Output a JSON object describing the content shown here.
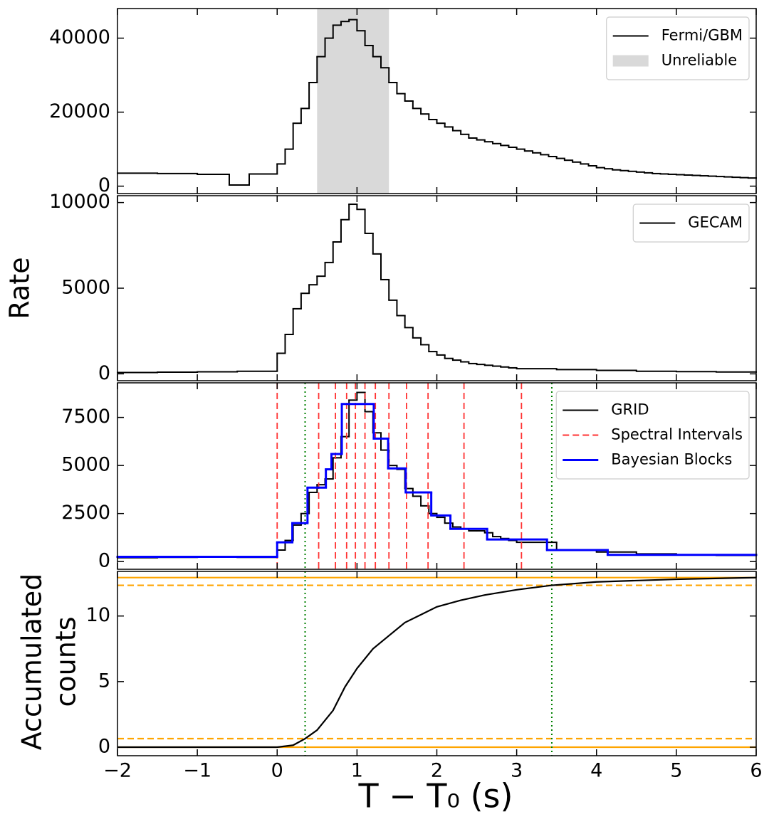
{
  "chart_data": [
    {
      "type": "histogram",
      "xlim": [
        -2,
        6
      ],
      "ylim": [
        -2000,
        48000
      ],
      "yticks": [
        0,
        20000,
        40000
      ],
      "legend": "upper right",
      "series": [
        {
          "name": "Fermi/GBM",
          "color": "#000000",
          "bins": [
            -2,
            -1.5,
            -1,
            -0.6,
            -0.35,
            0,
            0.1,
            0.2,
            0.3,
            0.4,
            0.5,
            0.6,
            0.7,
            0.8,
            0.9,
            1,
            1.1,
            1.2,
            1.3,
            1.4,
            1.5,
            1.6,
            1.7,
            1.8,
            1.9,
            2,
            2.1,
            2.2,
            2.3,
            2.4,
            2.5,
            2.6,
            2.7,
            2.8,
            2.9,
            3,
            3.1,
            3.2,
            3.3,
            3.4,
            3.5,
            3.6,
            3.7,
            3.8,
            3.9,
            4,
            4.1,
            4.2,
            4.3,
            4.4,
            4.5,
            4.6,
            4.7,
            4.8,
            4.9,
            5,
            5.1,
            5.2,
            5.3,
            5.4,
            5.5,
            5.6,
            5.7,
            5.8,
            5.9,
            6
          ],
          "values": [
            3500,
            3400,
            3200,
            300,
            3300,
            6000,
            10000,
            17000,
            21000,
            28000,
            35000,
            40000,
            43500,
            44500,
            45000,
            42000,
            38000,
            35000,
            32000,
            28000,
            25000,
            23000,
            21000,
            19500,
            18000,
            17000,
            16000,
            15000,
            14000,
            13000,
            12500,
            12000,
            11500,
            11000,
            10500,
            10000,
            9500,
            9000,
            8500,
            8000,
            7500,
            7000,
            6500,
            6000,
            5500,
            5000,
            4700,
            4400,
            4200,
            4000,
            3800,
            3600,
            3400,
            3300,
            3200,
            3100,
            3000,
            2900,
            2800,
            2700,
            2600,
            2500,
            2400,
            2300,
            2200
          ]
        },
        {
          "name": "Unreliable",
          "color": "#d9d9d9",
          "span": [
            0.5,
            1.4
          ]
        }
      ]
    },
    {
      "type": "histogram",
      "xlim": [
        -2,
        6
      ],
      "ylim": [
        -400,
        10400
      ],
      "yticks": [
        0,
        5000,
        10000
      ],
      "legend": "upper right",
      "y_label": "Rate",
      "series": [
        {
          "name": "GECAM",
          "color": "#000000",
          "bins": [
            -2,
            -1.5,
            -1,
            -0.5,
            0,
            0.1,
            0.2,
            0.3,
            0.4,
            0.5,
            0.6,
            0.7,
            0.8,
            0.9,
            1,
            1.1,
            1.2,
            1.3,
            1.4,
            1.5,
            1.6,
            1.7,
            1.8,
            1.9,
            2,
            2.1,
            2.2,
            2.3,
            2.4,
            2.5,
            2.6,
            2.7,
            2.8,
            2.9,
            3,
            3.5,
            4,
            4.5,
            5,
            5.5,
            6
          ],
          "values": [
            80,
            100,
            120,
            150,
            1200,
            2300,
            3800,
            4700,
            5200,
            5700,
            6500,
            7700,
            9000,
            9900,
            9600,
            8200,
            7000,
            5500,
            4300,
            3400,
            2700,
            2100,
            1700,
            1300,
            1100,
            900,
            800,
            700,
            600,
            550,
            500,
            450,
            400,
            350,
            300,
            250,
            200,
            150,
            130,
            110
          ]
        }
      ]
    },
    {
      "type": "histogram",
      "xlim": [
        -2,
        6
      ],
      "ylim": [
        -400,
        9300
      ],
      "yticks": [
        0,
        2500,
        5000,
        7500
      ],
      "legend": "upper right",
      "series": [
        {
          "name": "GRID",
          "color": "#000000",
          "bins": [
            -2,
            -1.5,
            -1,
            -0.5,
            0,
            0.1,
            0.2,
            0.3,
            0.4,
            0.5,
            0.6,
            0.7,
            0.8,
            0.9,
            1,
            1.1,
            1.2,
            1.3,
            1.4,
            1.5,
            1.6,
            1.7,
            1.8,
            1.9,
            2,
            2.1,
            2.2,
            2.3,
            2.4,
            2.5,
            2.6,
            2.7,
            2.8,
            2.9,
            3,
            3.5,
            4,
            4.5,
            5,
            5.5,
            6
          ],
          "values": [
            200,
            220,
            230,
            220,
            600,
            1100,
            1900,
            2500,
            3600,
            4000,
            4300,
            5400,
            6500,
            8400,
            8800,
            7800,
            6700,
            5800,
            5000,
            4800,
            3800,
            3400,
            2900,
            2500,
            2300,
            2000,
            1800,
            1700,
            1600,
            1600,
            1500,
            1300,
            1200,
            1100,
            1000,
            600,
            500,
            400,
            350,
            320
          ]
        },
        {
          "name": "Spectral Intervals",
          "color": "#ff3333",
          "style": "dashed",
          "x": [
            0,
            0.52,
            0.73,
            0.87,
            0.98,
            1.1,
            1.23,
            1.4,
            1.62,
            1.89,
            2.34,
            3.06
          ]
        },
        {
          "name": "Bayesian Blocks",
          "color": "#0000ff",
          "bins": [
            -2,
            0,
            0.19,
            0.38,
            0.61,
            0.68,
            0.81,
            1.21,
            1.39,
            1.61,
            1.93,
            2.17,
            2.63,
            3.38,
            4.14,
            6
          ],
          "values": [
            250,
            1000,
            2000,
            3850,
            4800,
            5600,
            8200,
            6400,
            4850,
            3600,
            2400,
            1700,
            1150,
            600,
            350
          ]
        }
      ],
      "markers": {
        "color": "#008000",
        "style": "dotted",
        "x": [
          0.35,
          3.44
        ]
      }
    },
    {
      "type": "line",
      "xlim": [
        -2,
        6
      ],
      "ylim": [
        -0.65,
        13.4
      ],
      "yticks": [
        0,
        5,
        10
      ],
      "xticks": [
        {
          "value": -2,
          "label": "−2"
        },
        {
          "value": -1,
          "label": "−1"
        },
        0,
        1,
        2,
        3,
        4,
        5,
        6
      ],
      "x_label": "T − T₀ (s)",
      "y_label": [
        "Accumulated",
        "counts"
      ],
      "series": [
        {
          "color": "#000000",
          "x": [
            -2,
            0,
            0.2,
            0.35,
            0.5,
            0.7,
            0.85,
            1,
            1.2,
            1.4,
            1.6,
            1.8,
            2,
            2.3,
            2.6,
            3,
            3.44,
            4,
            5,
            6
          ],
          "values": [
            0,
            0,
            0.15,
            0.65,
            1.3,
            2.8,
            4.6,
            6,
            7.5,
            8.5,
            9.5,
            10.1,
            10.7,
            11.2,
            11.6,
            12,
            12.34,
            12.6,
            12.8,
            12.93
          ]
        }
      ],
      "hlines": [
        {
          "value": 0,
          "color": "#ffa500",
          "style": "solid"
        },
        {
          "value": 0.65,
          "color": "#ffa500",
          "style": "dashed"
        },
        {
          "value": 12.34,
          "color": "#ffa500",
          "style": "dashed"
        },
        {
          "value": 12.93,
          "color": "#ffa500",
          "style": "solid"
        }
      ],
      "markers": {
        "color": "#008000",
        "style": "dotted",
        "x": [
          0.35,
          3.44
        ]
      }
    }
  ]
}
